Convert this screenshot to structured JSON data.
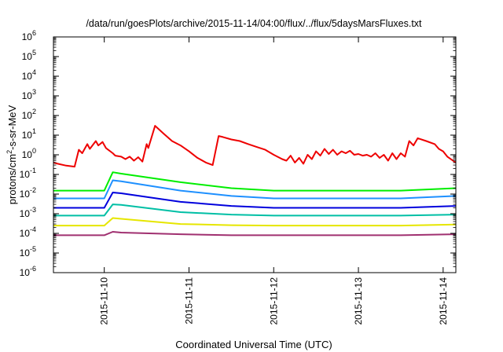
{
  "chart_data": {
    "type": "line",
    "title": "/data/run/goesPlots/archive/2015-11-14/04:00/flux/../flux/5daysMarsFluxes.txt",
    "xlabel": "Coordinated Universal Time (UTC)",
    "ylabel": "protons/cm²-s-sr-MeV",
    "ylabel_parts": {
      "pre": "protons/cm",
      "sup": "2",
      "post": "-s-sr-MeV"
    },
    "yscale": "log",
    "ylim_exp": [
      -6,
      6
    ],
    "y_ticks": [
      {
        "base": "10",
        "exp": "-6"
      },
      {
        "base": "10",
        "exp": "-5"
      },
      {
        "base": "10",
        "exp": "-4"
      },
      {
        "base": "10",
        "exp": "-3"
      },
      {
        "base": "10",
        "exp": "-2"
      },
      {
        "base": "10",
        "exp": "-1"
      },
      {
        "base": "10",
        "exp": "0"
      },
      {
        "base": "10",
        "exp": "1"
      },
      {
        "base": "10",
        "exp": "2"
      },
      {
        "base": "10",
        "exp": "3"
      },
      {
        "base": "10",
        "exp": "4"
      },
      {
        "base": "10",
        "exp": "5"
      },
      {
        "base": "10",
        "exp": "6"
      }
    ],
    "xlim_days": [
      -0.6,
      4.15
    ],
    "x_ticks": [
      {
        "day": 0,
        "label": "2015-11-10"
      },
      {
        "day": 1,
        "label": "2015-11-11"
      },
      {
        "day": 2,
        "label": "2015-11-12"
      },
      {
        "day": 3,
        "label": "2015-11-13"
      },
      {
        "day": 4,
        "label": "2015-11-14"
      }
    ],
    "grid": false,
    "series": [
      {
        "color": "#ee0000",
        "x": [
          -0.6,
          -0.55,
          -0.45,
          -0.35,
          -0.3,
          -0.26,
          -0.2,
          -0.17,
          -0.1,
          -0.07,
          -0.02,
          0.02,
          0.1,
          0.13,
          0.2,
          0.25,
          0.3,
          0.35,
          0.4,
          0.45,
          0.5,
          0.52,
          0.6,
          0.7,
          0.8,
          0.9,
          1.0,
          1.1,
          1.2,
          1.28,
          1.35,
          1.4,
          1.5,
          1.6,
          1.7,
          1.8,
          1.9,
          2.0,
          2.1,
          2.15,
          2.2,
          2.25,
          2.3,
          2.35,
          2.4,
          2.45,
          2.5,
          2.55,
          2.6,
          2.65,
          2.7,
          2.75,
          2.8,
          2.85,
          2.9,
          2.95,
          3.0,
          3.05,
          3.1,
          3.15,
          3.2,
          3.25,
          3.3,
          3.35,
          3.4,
          3.45,
          3.5,
          3.55,
          3.6,
          3.65,
          3.7,
          3.8,
          3.9,
          3.95,
          4.0,
          4.05,
          4.15
        ],
        "y": [
          0.4,
          0.35,
          0.28,
          0.25,
          1.8,
          1.2,
          3.5,
          2.0,
          5.0,
          3.0,
          4.5,
          2.2,
          1.2,
          0.9,
          0.8,
          0.6,
          0.8,
          0.5,
          0.75,
          0.45,
          3.5,
          2.2,
          30,
          12,
          5,
          3,
          1.5,
          0.7,
          0.4,
          0.3,
          9,
          8,
          6,
          5,
          3.5,
          2.5,
          1.8,
          1.0,
          0.6,
          0.5,
          0.9,
          0.4,
          0.7,
          0.35,
          1.0,
          0.6,
          1.5,
          0.9,
          2.0,
          1.1,
          1.8,
          1.0,
          1.5,
          1.2,
          1.6,
          1.0,
          1.1,
          0.9,
          1.0,
          0.8,
          1.2,
          0.7,
          1.0,
          0.5,
          1.2,
          0.6,
          1.2,
          0.8,
          5,
          3,
          7,
          5,
          3.5,
          2.0,
          1.5,
          0.8,
          0.4
        ]
      },
      {
        "color": "#00ee00",
        "x": [
          -0.6,
          0.0,
          0.1,
          0.2,
          0.9,
          1.5,
          2.0,
          2.5,
          3.0,
          3.5,
          4.15
        ],
        "y": [
          0.015,
          0.015,
          0.13,
          0.11,
          0.04,
          0.02,
          0.015,
          0.015,
          0.015,
          0.015,
          0.02
        ]
      },
      {
        "color": "#1e90ff",
        "x": [
          -0.6,
          0.0,
          0.1,
          0.2,
          0.9,
          1.5,
          2.0,
          2.5,
          3.0,
          3.5,
          4.15
        ],
        "y": [
          0.006,
          0.006,
          0.05,
          0.045,
          0.015,
          0.008,
          0.006,
          0.006,
          0.006,
          0.006,
          0.008
        ]
      },
      {
        "color": "#0000dd",
        "x": [
          -0.6,
          0.0,
          0.1,
          0.2,
          0.9,
          1.5,
          2.0,
          2.5,
          3.0,
          3.5,
          4.15
        ],
        "y": [
          0.002,
          0.002,
          0.012,
          0.011,
          0.004,
          0.0025,
          0.002,
          0.002,
          0.002,
          0.002,
          0.0025
        ]
      },
      {
        "color": "#00bfa5",
        "x": [
          -0.6,
          0.0,
          0.1,
          0.2,
          0.9,
          1.5,
          2.0,
          2.5,
          3.0,
          3.5,
          4.15
        ],
        "y": [
          0.0008,
          0.0008,
          0.003,
          0.0028,
          0.0012,
          0.0009,
          0.0008,
          0.0008,
          0.0008,
          0.0008,
          0.0009
        ]
      },
      {
        "color": "#e6e600",
        "x": [
          -0.6,
          0.0,
          0.1,
          0.2,
          0.9,
          1.5,
          2.0,
          2.5,
          3.0,
          3.5,
          4.15
        ],
        "y": [
          0.00025,
          0.00025,
          0.0006,
          0.00055,
          0.0003,
          0.00026,
          0.00025,
          0.00025,
          0.00025,
          0.00025,
          0.00028
        ]
      },
      {
        "color": "#a03070",
        "x": [
          -0.6,
          0.0,
          0.1,
          0.2,
          0.9,
          1.5,
          2.0,
          2.5,
          3.0,
          3.5,
          4.15
        ],
        "y": [
          8e-05,
          8e-05,
          0.00012,
          0.00011,
          9e-05,
          8e-05,
          8e-05,
          8e-05,
          8e-05,
          8e-05,
          9e-05
        ]
      }
    ]
  }
}
